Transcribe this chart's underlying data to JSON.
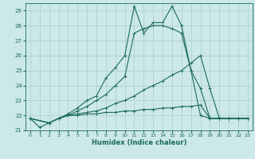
{
  "xlabel": "Humidex (Indice chaleur)",
  "bg_color": "#cce8e8",
  "grid_color": "#aacccc",
  "line_color": "#1a6b5a",
  "xlim": [
    -0.5,
    23.5
  ],
  "ylim": [
    21.0,
    29.5
  ],
  "yticks": [
    21,
    22,
    23,
    24,
    25,
    26,
    27,
    28,
    29
  ],
  "xticks": [
    0,
    1,
    2,
    3,
    4,
    5,
    6,
    7,
    8,
    9,
    10,
    11,
    12,
    13,
    14,
    15,
    16,
    17,
    18,
    19,
    20,
    21,
    22,
    23
  ],
  "lines": [
    {
      "x": [
        0,
        1,
        2,
        3,
        4,
        5,
        6,
        7,
        8,
        9,
        10,
        11,
        12,
        13,
        14,
        15,
        16,
        17,
        18,
        19,
        20,
        21,
        22,
        23
      ],
      "y": [
        21.8,
        21.2,
        21.5,
        21.8,
        22.1,
        22.5,
        23.0,
        23.3,
        24.5,
        25.2,
        26.0,
        29.3,
        27.5,
        28.2,
        28.2,
        29.3,
        28.0,
        25.0,
        22.0,
        21.8,
        21.8,
        21.8,
        21.8,
        21.8
      ],
      "marker": "+"
    },
    {
      "x": [
        0,
        2,
        3,
        4,
        5,
        6,
        7,
        8,
        9,
        10,
        11,
        12,
        13,
        14,
        15,
        16,
        17,
        18,
        19,
        20,
        21,
        22,
        23
      ],
      "y": [
        21.8,
        21.5,
        21.8,
        22.0,
        22.3,
        22.6,
        23.0,
        23.4,
        24.0,
        24.6,
        27.5,
        27.8,
        28.0,
        28.0,
        27.8,
        27.5,
        25.0,
        23.8,
        21.8,
        21.8,
        21.8,
        21.8,
        21.8
      ],
      "marker": "+"
    },
    {
      "x": [
        0,
        2,
        3,
        4,
        5,
        6,
        7,
        8,
        9,
        10,
        11,
        12,
        13,
        14,
        15,
        16,
        17,
        18,
        19,
        20,
        21,
        22,
        23
      ],
      "y": [
        21.8,
        21.5,
        21.8,
        22.0,
        22.1,
        22.2,
        22.3,
        22.5,
        22.8,
        23.0,
        23.3,
        23.7,
        24.0,
        24.3,
        24.7,
        25.0,
        25.5,
        26.0,
        23.8,
        21.8,
        21.8,
        21.8,
        21.8
      ],
      "marker": "+"
    },
    {
      "x": [
        0,
        2,
        3,
        4,
        5,
        6,
        7,
        8,
        9,
        10,
        11,
        12,
        13,
        14,
        15,
        16,
        17,
        18,
        19,
        20,
        21,
        22,
        23
      ],
      "y": [
        21.8,
        21.5,
        21.8,
        22.0,
        22.0,
        22.1,
        22.1,
        22.2,
        22.2,
        22.3,
        22.3,
        22.4,
        22.4,
        22.5,
        22.5,
        22.6,
        22.6,
        22.7,
        21.8,
        21.8,
        21.8,
        21.8,
        21.8
      ],
      "marker": "+"
    }
  ]
}
